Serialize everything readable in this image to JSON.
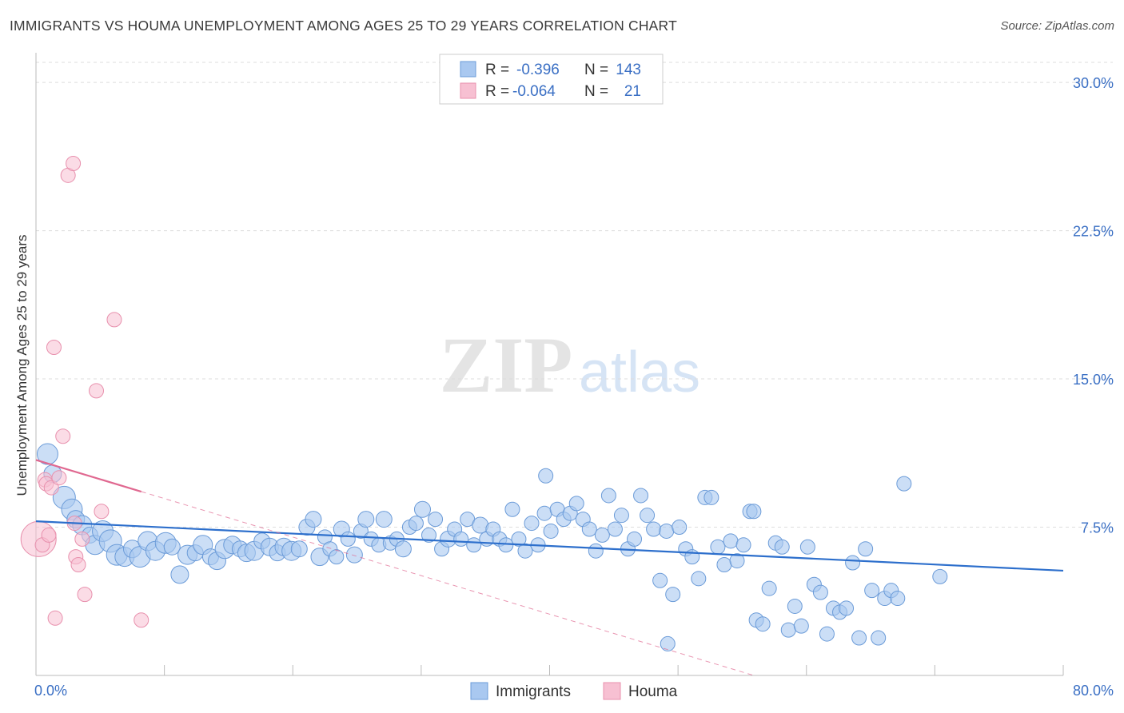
{
  "chart_data": {
    "type": "scatter",
    "title": "IMMIGRANTS VS HOUMA UNEMPLOYMENT AMONG AGES 25 TO 29 YEARS CORRELATION CHART",
    "source": "Source: ZipAtlas.com",
    "watermark": {
      "zip": "ZIP",
      "atlas": "atlas"
    },
    "xlabel": "",
    "ylabel": "Unemployment Among Ages 25 to 29 years",
    "xlim": [
      0,
      80
    ],
    "ylim": [
      0,
      31.5
    ],
    "x_tick_labels": [
      {
        "value": 0,
        "label": "0.0%"
      },
      {
        "value": 80,
        "label": "80.0%"
      }
    ],
    "y_tick_labels": [
      {
        "value": 7.5,
        "label": "7.5%"
      },
      {
        "value": 15.0,
        "label": "15.0%"
      },
      {
        "value": 22.5,
        "label": "22.5%"
      },
      {
        "value": 30.0,
        "label": "30.0%"
      }
    ],
    "grid": true,
    "legend": {
      "position": "top-center",
      "entries": [
        {
          "series": "Immigrants",
          "r_label": "R =",
          "r": "-0.396",
          "n_label": "N =",
          "n": "143"
        },
        {
          "series": "Houma",
          "r_label": "R =",
          "r": "-0.064",
          "n_label": "N =",
          "n": "21"
        }
      ]
    },
    "bottom_legend": [
      "Immigrants",
      "Houma"
    ],
    "colors": {
      "immigrants_fill": "#a9c8f0",
      "immigrants_stroke": "#6b9bd8",
      "immigrants_line": "#2d6fcc",
      "houma_fill": "#f7c0d2",
      "houma_stroke": "#e890ad",
      "houma_line": "#e06890",
      "tick": "#3a6fc4",
      "grid": "#dddddd"
    },
    "series": [
      {
        "name": "Immigrants",
        "trend": {
          "x": [
            0,
            80
          ],
          "y": [
            7.8,
            5.3
          ]
        },
        "points": [
          [
            0.9,
            11.2,
            13
          ],
          [
            1.3,
            10.2,
            11
          ],
          [
            2.2,
            9.0,
            14
          ],
          [
            2.8,
            8.4,
            13
          ],
          [
            3.1,
            7.9,
            11
          ],
          [
            3.6,
            7.6,
            12
          ],
          [
            4.2,
            7.1,
            10
          ],
          [
            4.6,
            6.6,
            12
          ],
          [
            5.2,
            7.3,
            13
          ],
          [
            5.8,
            6.8,
            14
          ],
          [
            6.3,
            6.1,
            13
          ],
          [
            6.9,
            6.0,
            12
          ],
          [
            7.5,
            6.4,
            11
          ],
          [
            8.1,
            6.0,
            13
          ],
          [
            8.7,
            6.8,
            12
          ],
          [
            9.3,
            6.3,
            12
          ],
          [
            10.1,
            6.7,
            13
          ],
          [
            10.6,
            6.5,
            10
          ],
          [
            11.2,
            5.1,
            11
          ],
          [
            11.8,
            6.1,
            12
          ],
          [
            12.4,
            6.2,
            10
          ],
          [
            13.0,
            6.6,
            12
          ],
          [
            13.6,
            6.0,
            10
          ],
          [
            14.1,
            5.8,
            11
          ],
          [
            14.7,
            6.4,
            12
          ],
          [
            15.3,
            6.6,
            11
          ],
          [
            15.9,
            6.4,
            10
          ],
          [
            16.4,
            6.2,
            11
          ],
          [
            17.0,
            6.3,
            12
          ],
          [
            17.6,
            6.8,
            10
          ],
          [
            18.2,
            6.5,
            11
          ],
          [
            18.8,
            6.2,
            10
          ],
          [
            19.3,
            6.5,
            11
          ],
          [
            19.9,
            6.3,
            12
          ],
          [
            20.5,
            6.4,
            10
          ],
          [
            21.1,
            7.5,
            10
          ],
          [
            21.6,
            7.9,
            10
          ],
          [
            22.1,
            6.0,
            11
          ],
          [
            22.5,
            7.0,
            9
          ],
          [
            22.9,
            6.4,
            9
          ],
          [
            23.4,
            6.0,
            9
          ],
          [
            23.8,
            7.4,
            10
          ],
          [
            24.3,
            6.9,
            9
          ],
          [
            24.8,
            6.1,
            10
          ],
          [
            25.3,
            7.3,
            9
          ],
          [
            25.7,
            7.9,
            10
          ],
          [
            26.1,
            6.9,
            9
          ],
          [
            26.7,
            6.6,
            9
          ],
          [
            27.1,
            7.9,
            10
          ],
          [
            27.6,
            6.7,
            9
          ],
          [
            28.1,
            6.9,
            9
          ],
          [
            28.6,
            6.4,
            10
          ],
          [
            29.1,
            7.5,
            9
          ],
          [
            29.6,
            7.7,
            9
          ],
          [
            30.1,
            8.4,
            10
          ],
          [
            30.6,
            7.1,
            9
          ],
          [
            31.1,
            7.9,
            9
          ],
          [
            31.6,
            6.4,
            9
          ],
          [
            32.1,
            6.9,
            10
          ],
          [
            32.6,
            7.4,
            9
          ],
          [
            33.1,
            6.9,
            9
          ],
          [
            33.6,
            7.9,
            9
          ],
          [
            34.1,
            6.6,
            9
          ],
          [
            34.6,
            7.6,
            10
          ],
          [
            35.1,
            6.9,
            9
          ],
          [
            35.6,
            7.4,
            9
          ],
          [
            36.1,
            6.9,
            9
          ],
          [
            36.6,
            6.6,
            9
          ],
          [
            37.1,
            8.4,
            9
          ],
          [
            37.6,
            6.9,
            9
          ],
          [
            38.1,
            6.3,
            9
          ],
          [
            38.6,
            7.7,
            9
          ],
          [
            39.1,
            6.6,
            9
          ],
          [
            39.6,
            8.2,
            9
          ],
          [
            40.1,
            7.3,
            9
          ],
          [
            40.6,
            8.4,
            9
          ],
          [
            41.1,
            7.9,
            9
          ],
          [
            41.6,
            8.2,
            9
          ],
          [
            42.1,
            8.7,
            9
          ],
          [
            42.6,
            7.9,
            9
          ],
          [
            43.1,
            7.4,
            9
          ],
          [
            43.6,
            6.3,
            9
          ],
          [
            44.1,
            7.1,
            9
          ],
          [
            44.6,
            9.1,
            9
          ],
          [
            45.1,
            7.4,
            9
          ],
          [
            45.6,
            8.1,
            9
          ],
          [
            46.1,
            6.4,
            9
          ],
          [
            46.6,
            6.9,
            9
          ],
          [
            47.1,
            9.1,
            9
          ],
          [
            47.6,
            8.1,
            9
          ],
          [
            48.1,
            7.4,
            9
          ],
          [
            48.6,
            4.8,
            9
          ],
          [
            49.1,
            7.3,
            9
          ],
          [
            49.6,
            4.1,
            9
          ],
          [
            50.1,
            7.5,
            9
          ],
          [
            50.6,
            6.4,
            9
          ],
          [
            51.1,
            6.0,
            9
          ],
          [
            51.6,
            4.9,
            9
          ],
          [
            52.1,
            9.0,
            9
          ],
          [
            52.6,
            9.0,
            9
          ],
          [
            53.1,
            6.5,
            9
          ],
          [
            53.6,
            5.6,
            9
          ],
          [
            54.1,
            6.8,
            9
          ],
          [
            54.6,
            5.8,
            9
          ],
          [
            55.1,
            6.6,
            9
          ],
          [
            55.6,
            8.3,
            9
          ],
          [
            55.9,
            8.3,
            9
          ],
          [
            56.1,
            2.8,
            9
          ],
          [
            56.6,
            2.6,
            9
          ],
          [
            57.1,
            4.4,
            9
          ],
          [
            57.6,
            6.7,
            9
          ],
          [
            58.1,
            6.5,
            9
          ],
          [
            58.6,
            2.3,
            9
          ],
          [
            59.1,
            3.5,
            9
          ],
          [
            59.6,
            2.5,
            9
          ],
          [
            60.1,
            6.5,
            9
          ],
          [
            60.6,
            4.6,
            9
          ],
          [
            61.1,
            4.2,
            9
          ],
          [
            61.6,
            2.1,
            9
          ],
          [
            62.1,
            3.4,
            9
          ],
          [
            62.6,
            3.2,
            9
          ],
          [
            63.1,
            3.4,
            9
          ],
          [
            63.6,
            5.7,
            9
          ],
          [
            64.1,
            1.9,
            9
          ],
          [
            64.6,
            6.4,
            9
          ],
          [
            65.1,
            4.3,
            9
          ],
          [
            65.6,
            1.9,
            9
          ],
          [
            66.1,
            3.9,
            9
          ],
          [
            66.6,
            4.3,
            9
          ],
          [
            67.1,
            3.9,
            9
          ],
          [
            67.6,
            9.7,
            9
          ],
          [
            70.4,
            5.0,
            9
          ],
          [
            49.2,
            1.6,
            9
          ],
          [
            39.7,
            10.1,
            9
          ]
        ]
      },
      {
        "name": "Houma",
        "trend_solid": {
          "x": [
            0,
            8.2
          ],
          "y": [
            10.9,
            9.3
          ]
        },
        "trend_dashed": {
          "x": [
            8.2,
            80
          ],
          "y": [
            9.3,
            -4.7
          ]
        },
        "points": [
          [
            0.2,
            6.9,
            22
          ],
          [
            0.5,
            6.6,
            9
          ],
          [
            0.7,
            9.9,
            9
          ],
          [
            0.8,
            9.7,
            9
          ],
          [
            1.0,
            7.1,
            9
          ],
          [
            1.2,
            9.5,
            9
          ],
          [
            1.4,
            16.6,
            9
          ],
          [
            1.5,
            2.9,
            9
          ],
          [
            1.8,
            10.0,
            9
          ],
          [
            2.1,
            12.1,
            9
          ],
          [
            2.5,
            25.3,
            9
          ],
          [
            2.9,
            25.9,
            9
          ],
          [
            3.0,
            7.7,
            9
          ],
          [
            3.1,
            6.0,
            9
          ],
          [
            3.3,
            5.6,
            9
          ],
          [
            3.6,
            6.9,
            9
          ],
          [
            3.8,
            4.1,
            9
          ],
          [
            4.7,
            14.4,
            9
          ],
          [
            5.1,
            8.3,
            9
          ],
          [
            6.1,
            18.0,
            9
          ],
          [
            8.2,
            2.8,
            9
          ]
        ]
      }
    ]
  }
}
